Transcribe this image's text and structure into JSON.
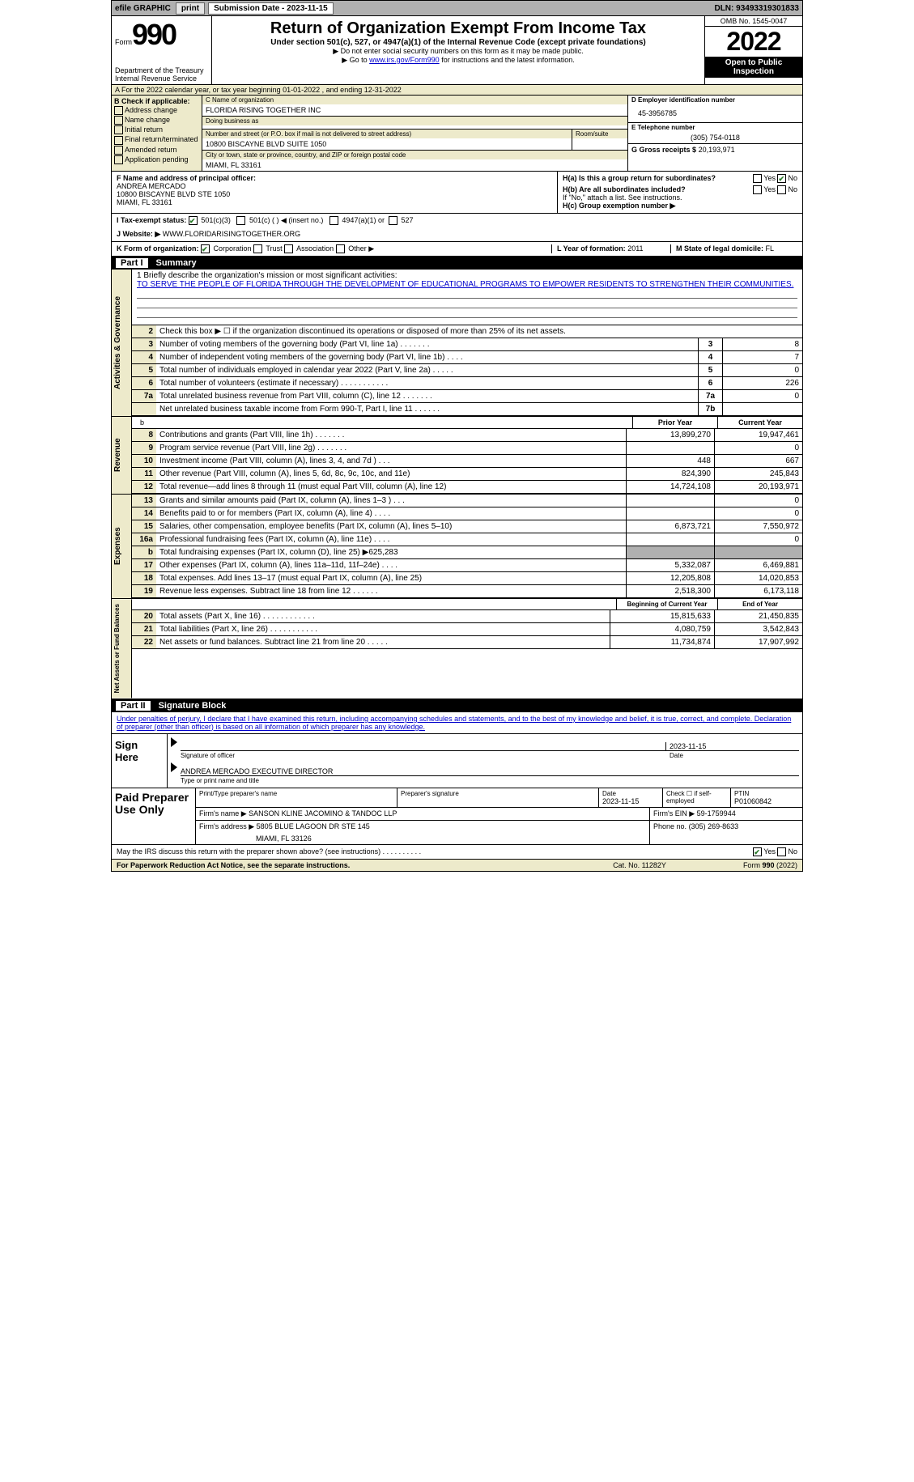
{
  "topbar": {
    "efile_label": "efile GRAPHIC",
    "print_btn": "print",
    "submission_label": "Submission Date - 2023-11-15",
    "dln": "DLN: 93493319301833"
  },
  "header": {
    "form_word": "Form",
    "form_num": "990",
    "dept": "Department of the Treasury Internal Revenue Service",
    "title": "Return of Organization Exempt From Income Tax",
    "sub": "Under section 501(c), 527, or 4947(a)(1) of the Internal Revenue Code (except private foundations)",
    "sub2a": "▶ Do not enter social security numbers on this form as it may be made public.",
    "sub2b_pre": "▶ Go to ",
    "sub2b_link": "www.irs.gov/Form990",
    "sub2b_post": " for instructions and the latest information.",
    "omb": "OMB No. 1545-0047",
    "year": "2022",
    "open": "Open to Public Inspection"
  },
  "row_a": "A For the 2022 calendar year, or tax year beginning 01-01-2022   , and ending 12-31-2022",
  "b": {
    "label": "B Check if applicable:",
    "opts": [
      "Address change",
      "Name change",
      "Initial return",
      "Final return/terminated",
      "Amended return",
      "Application pending"
    ]
  },
  "c": {
    "name_label": "C Name of organization",
    "name": "FLORIDA RISING TOGETHER INC",
    "dba_label": "Doing business as",
    "dba": "",
    "addr_label": "Number and street (or P.O. box if mail is not delivered to street address)",
    "room_label": "Room/suite",
    "addr": "10800 BISCAYNE BLVD SUITE 1050",
    "city_label": "City or town, state or province, country, and ZIP or foreign postal code",
    "city": "MIAMI, FL  33161"
  },
  "d": {
    "ein_label": "D Employer identification number",
    "ein": "45-3956785",
    "phone_label": "E Telephone number",
    "phone": "(305) 754-0118",
    "gross_label": "G Gross receipts $",
    "gross": "20,193,971"
  },
  "f": {
    "label": "F Name and address of principal officer:",
    "name": "ANDREA MERCADO",
    "addr1": "10800 BISCAYNE BLVD STE 1050",
    "addr2": "MIAMI, FL  33161"
  },
  "h": {
    "a_label": "H(a)  Is this a group return for subordinates?",
    "b_label": "H(b)  Are all subordinates included?",
    "attach": "If \"No,\" attach a list. See instructions.",
    "c_label": "H(c)  Group exemption number ▶"
  },
  "i": {
    "label": "I    Tax-exempt status:",
    "opts": [
      "501(c)(3)",
      "501(c) (  ) ◀ (insert no.)",
      "4947(a)(1) or",
      "527"
    ]
  },
  "j": {
    "label": "J   Website: ▶",
    "value": "WWW.FLORIDARISINGTOGETHER.ORG"
  },
  "k": {
    "label": "K Form of organization:",
    "opts": [
      "Corporation",
      "Trust",
      "Association",
      "Other ▶"
    ]
  },
  "l": {
    "label": "L Year of formation:",
    "value": "2011"
  },
  "m": {
    "label": "M State of legal domicile:",
    "value": "FL"
  },
  "part1": {
    "num": "Part I",
    "title": "Summary"
  },
  "mission": {
    "label": "1   Briefly describe the organization's mission or most significant activities:",
    "text": "TO SERVE THE PEOPLE OF FLORIDA THROUGH THE DEVELOPMENT OF EDUCATIONAL PROGRAMS TO EMPOWER RESIDENTS TO STRENGTHEN THEIR COMMUNITIES."
  },
  "line2": "Check this box ▶ ☐ if the organization discontinued its operations or disposed of more than 25% of its net assets.",
  "gov_lines": [
    {
      "n": "3",
      "t": "Number of voting members of the governing body (Part VI, line 1a)   .    .    .    .    .    .    .",
      "box": "3",
      "v": "8"
    },
    {
      "n": "4",
      "t": "Number of independent voting members of the governing body (Part VI, line 1b)   .    .    .    .",
      "box": "4",
      "v": "7"
    },
    {
      "n": "5",
      "t": "Total number of individuals employed in calendar year 2022 (Part V, line 2a)   .    .    .    .    .",
      "box": "5",
      "v": "0"
    },
    {
      "n": "6",
      "t": "Total number of volunteers (estimate if necessary)    .    .    .    .    .    .    .    .    .    .    .",
      "box": "6",
      "v": "226"
    },
    {
      "n": "7a",
      "t": "Total unrelated business revenue from Part VIII, column (C), line 12   .    .    .    .    .    .    .",
      "box": "7a",
      "v": "0"
    },
    {
      "n": "",
      "t": "Net unrelated business taxable income from Form 990-T, Part I, line 11   .    .    .    .    .    .",
      "box": "7b",
      "v": ""
    }
  ],
  "col_heads": {
    "b": "b",
    "prior": "Prior Year",
    "current": "Current Year"
  },
  "revenue_lines": [
    {
      "n": "8",
      "t": "Contributions and grants (Part VIII, line 1h)   .    .    .    .    .    .    .",
      "py": "13,899,270",
      "cy": "19,947,461"
    },
    {
      "n": "9",
      "t": "Program service revenue (Part VIII, line 2g)    .    .    .    .    .    .    .",
      "py": "",
      "cy": "0"
    },
    {
      "n": "10",
      "t": "Investment income (Part VIII, column (A), lines 3, 4, and 7d )    .    .    .",
      "py": "448",
      "cy": "667"
    },
    {
      "n": "11",
      "t": "Other revenue (Part VIII, column (A), lines 5, 6d, 8c, 9c, 10c, and 11e)",
      "py": "824,390",
      "cy": "245,843"
    },
    {
      "n": "12",
      "t": "Total revenue—add lines 8 through 11 (must equal Part VIII, column (A), line 12)",
      "py": "14,724,108",
      "cy": "20,193,971"
    }
  ],
  "expense_lines": [
    {
      "n": "13",
      "t": "Grants and similar amounts paid (Part IX, column (A), lines 1–3 )   .    .    .",
      "py": "",
      "cy": "0"
    },
    {
      "n": "14",
      "t": "Benefits paid to or for members (Part IX, column (A), line 4)   .    .    .    .",
      "py": "",
      "cy": "0"
    },
    {
      "n": "15",
      "t": "Salaries, other compensation, employee benefits (Part IX, column (A), lines 5–10)",
      "py": "6,873,721",
      "cy": "7,550,972"
    },
    {
      "n": "16a",
      "t": "Professional fundraising fees (Part IX, column (A), line 11e)   .    .    .    .",
      "py": "",
      "cy": "0"
    },
    {
      "n": "b",
      "t": "Total fundraising expenses (Part IX, column (D), line 25) ▶625,283",
      "py": "grey",
      "cy": "grey"
    },
    {
      "n": "17",
      "t": "Other expenses (Part IX, column (A), lines 11a–11d, 11f–24e)   .    .    .    .",
      "py": "5,332,087",
      "cy": "6,469,881"
    },
    {
      "n": "18",
      "t": "Total expenses. Add lines 13–17 (must equal Part IX, column (A), line 25)",
      "py": "12,205,808",
      "cy": "14,020,853"
    },
    {
      "n": "19",
      "t": "Revenue less expenses. Subtract line 18 from line 12   .    .    .    .    .    .",
      "py": "2,518,300",
      "cy": "6,173,118"
    }
  ],
  "net_heads": {
    "begin": "Beginning of Current Year",
    "end": "End of Year"
  },
  "net_lines": [
    {
      "n": "20",
      "t": "Total assets (Part X, line 16)   .    .    .    .    .    .    .    .    .    .    .    .",
      "py": "15,815,633",
      "cy": "21,450,835"
    },
    {
      "n": "21",
      "t": "Total liabilities (Part X, line 26)   .    .    .    .    .    .    .    .    .    .    .",
      "py": "4,080,759",
      "cy": "3,542,843"
    },
    {
      "n": "22",
      "t": "Net assets or fund balances. Subtract line 21 from line 20   .    .    .    .    .",
      "py": "11,734,874",
      "cy": "17,907,992"
    }
  ],
  "vtabs": {
    "gov": "Activities & Governance",
    "rev": "Revenue",
    "exp": "Expenses",
    "net": "Net Assets or Fund Balances"
  },
  "part2": {
    "num": "Part II",
    "title": "Signature Block"
  },
  "sig": {
    "declare": "Under penalties of perjury, I declare that I have examined this return, including accompanying schedules and statements, and to the best of my knowledge and belief, it is true, correct, and complete. Declaration of preparer (other than officer) is based on all information of which preparer has any knowledge.",
    "sign_here": "Sign Here",
    "sig_officer": "Signature of officer",
    "date": "Date",
    "date_val": "2023-11-15",
    "name_title": "ANDREA MERCADO  EXECUTIVE DIRECTOR",
    "name_title_label": "Type or print name and title"
  },
  "paid": {
    "label": "Paid Preparer Use Only",
    "print_name_label": "Print/Type preparer's name",
    "prep_sig_label": "Preparer's signature",
    "date_label": "Date",
    "date_val": "2023-11-15",
    "check_label": "Check ☐ if self-employed",
    "ptin_label": "PTIN",
    "ptin": "P01060842",
    "firm_name_label": "Firm's name    ▶",
    "firm_name": "SANSON KLINE JACOMINO & TANDOC LLP",
    "firm_ein_label": "Firm's EIN ▶",
    "firm_ein": "59-1759944",
    "firm_addr_label": "Firm's address ▶",
    "firm_addr1": "5805 BLUE LAGOON DR STE 145",
    "firm_addr2": "MIAMI, FL  33126",
    "phone_label": "Phone no.",
    "phone": "(305) 269-8633"
  },
  "discuss": "May the IRS discuss this return with the preparer shown above? (see instructions)   .    .    .    .    .    .    .    .    .    .",
  "footer": {
    "paperwork": "For Paperwork Reduction Act Notice, see the separate instructions.",
    "cat": "Cat. No. 11282Y",
    "form": "Form 990 (2022)"
  },
  "yesno": {
    "yes": "Yes",
    "no": "No"
  }
}
